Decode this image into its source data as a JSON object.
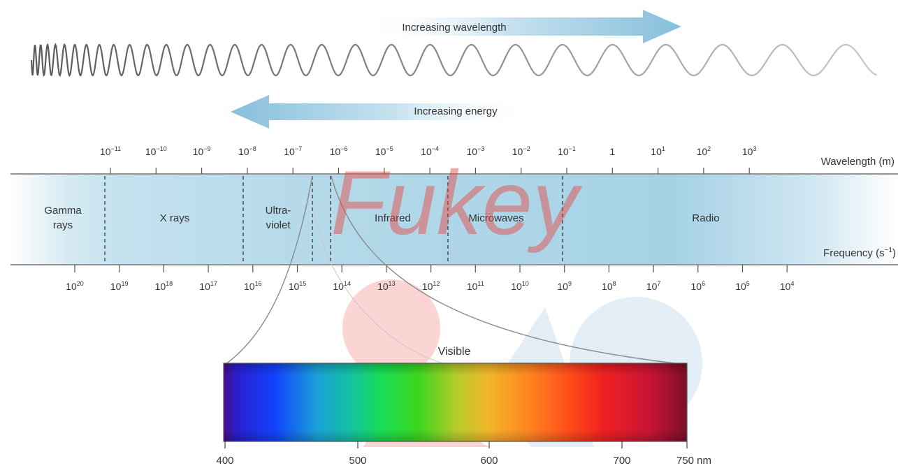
{
  "arrows": {
    "wavelength_label": "Increasing wavelength",
    "energy_label": "Increasing energy"
  },
  "axis": {
    "wavelength_label": "Wavelength (m)",
    "frequency_label": "Frequency (s",
    "frequency_unit_sup": "−1",
    "frequency_close": ")"
  },
  "wavelength_ticks": [
    {
      "base": "10",
      "exp": "−11"
    },
    {
      "base": "10",
      "exp": "−10"
    },
    {
      "base": "10",
      "exp": "−9"
    },
    {
      "base": "10",
      "exp": "−8"
    },
    {
      "base": "10",
      "exp": "−7"
    },
    {
      "base": "10",
      "exp": "−6"
    },
    {
      "base": "10",
      "exp": "−5"
    },
    {
      "base": "10",
      "exp": "−4"
    },
    {
      "base": "10",
      "exp": "−3"
    },
    {
      "base": "10",
      "exp": "−2"
    },
    {
      "base": "10",
      "exp": "−1"
    },
    {
      "base": "1",
      "exp": ""
    },
    {
      "base": "10",
      "exp": "1"
    },
    {
      "base": "10",
      "exp": "2"
    },
    {
      "base": "10",
      "exp": "3"
    }
  ],
  "frequency_ticks": [
    {
      "base": "10",
      "exp": "20"
    },
    {
      "base": "10",
      "exp": "19"
    },
    {
      "base": "10",
      "exp": "18"
    },
    {
      "base": "10",
      "exp": "17"
    },
    {
      "base": "10",
      "exp": "16"
    },
    {
      "base": "10",
      "exp": "15"
    },
    {
      "base": "10",
      "exp": "14"
    },
    {
      "base": "10",
      "exp": "13"
    },
    {
      "base": "10",
      "exp": "12"
    },
    {
      "base": "10",
      "exp": "11"
    },
    {
      "base": "10",
      "exp": "10"
    },
    {
      "base": "10",
      "exp": "9"
    },
    {
      "base": "10",
      "exp": "8"
    },
    {
      "base": "10",
      "exp": "7"
    },
    {
      "base": "10",
      "exp": "6"
    },
    {
      "base": "10",
      "exp": "5"
    },
    {
      "base": "10",
      "exp": "4"
    }
  ],
  "regions": [
    {
      "line1": "Gamma",
      "line2": "rays"
    },
    {
      "line1": "X rays",
      "line2": ""
    },
    {
      "line1": "Ultra-",
      "line2": "violet"
    },
    {
      "line1": "Infrared",
      "line2": ""
    },
    {
      "line1": "Microwaves",
      "line2": ""
    },
    {
      "line1": "Radio",
      "line2": ""
    }
  ],
  "visible": {
    "title": "Visible",
    "ticks": [
      "400",
      "500",
      "600",
      "700",
      "750 nm"
    ]
  },
  "watermark": "Fukey",
  "colors": {
    "band_blue": "#a9d4e6",
    "arrow_blue": "#8fc3dd",
    "watermark_red": "#e8413a",
    "watermark_blue": "#7fb0d8"
  }
}
